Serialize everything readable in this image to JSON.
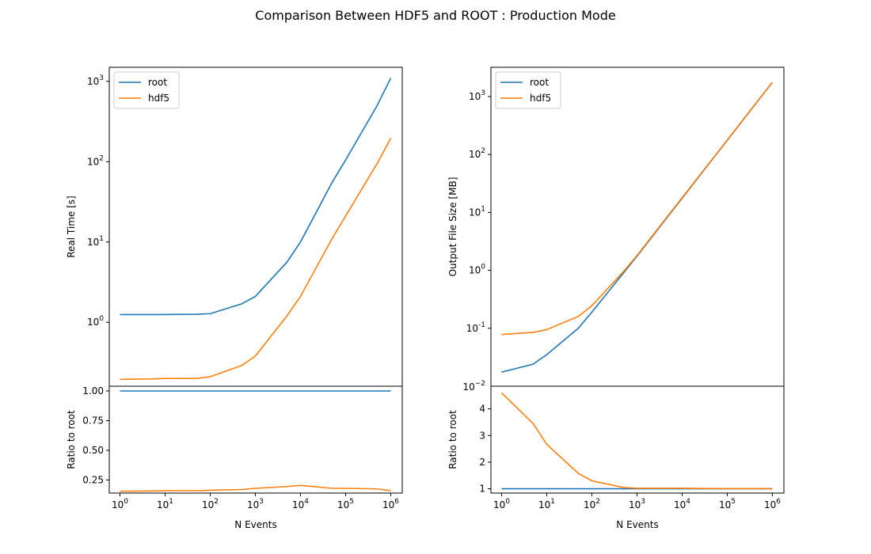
{
  "figure": {
    "title": "Comparison Between HDF5 and ROOT : Production Mode"
  },
  "chart_data": [
    {
      "type": "line",
      "panel": "top-left",
      "xlabel": "",
      "ylabel": "Real Time [s]",
      "xscale": "log",
      "yscale": "log",
      "xlim": [
        0.58,
        1800000.0
      ],
      "ylim": [
        0.16,
        1500
      ],
      "yticks": [
        1,
        10,
        100,
        1000
      ],
      "legend": "upper left",
      "x": [
        1,
        5,
        10,
        50,
        100,
        500,
        1000,
        5000,
        10000,
        50000,
        100000,
        500000,
        1000000
      ],
      "series": [
        {
          "name": "root",
          "color": "#1f77b4",
          "values": [
            1.25,
            1.25,
            1.25,
            1.26,
            1.28,
            1.7,
            2.1,
            5.6,
            10,
            55,
            105,
            500,
            1100
          ]
        },
        {
          "name": "hdf5",
          "color": "#ff7f0e",
          "values": [
            0.195,
            0.197,
            0.2,
            0.2,
            0.21,
            0.29,
            0.38,
            1.2,
            2.1,
            11,
            21,
            95,
            195
          ]
        }
      ]
    },
    {
      "type": "line",
      "panel": "bottom-left",
      "xlabel": "N Events",
      "ylabel": "Ratio to root",
      "xscale": "log",
      "yscale": "linear",
      "xlim": [
        0.58,
        1800000.0
      ],
      "ylim": [
        0.14,
        1.04
      ],
      "yticks": [
        0.25,
        0.5,
        0.75,
        1.0
      ],
      "ytick_labels": [
        "0.25",
        "0.50",
        "0.75",
        "1.00"
      ],
      "xtick_labels": [
        "10^0",
        "10^1",
        "10^2",
        "10^3",
        "10^4",
        "10^5",
        "10^6"
      ],
      "x": [
        1,
        5,
        10,
        50,
        100,
        500,
        1000,
        5000,
        10000,
        50000,
        100000,
        500000,
        1000000
      ],
      "series": [
        {
          "name": "root",
          "color": "#1f77b4",
          "values": [
            1,
            1,
            1,
            1,
            1,
            1,
            1,
            1,
            1,
            1,
            1,
            1,
            1
          ]
        },
        {
          "name": "hdf5",
          "color": "#ff7f0e",
          "values": [
            0.155,
            0.158,
            0.16,
            0.16,
            0.164,
            0.17,
            0.18,
            0.195,
            0.205,
            0.18,
            0.18,
            0.175,
            0.16
          ]
        }
      ]
    },
    {
      "type": "line",
      "panel": "top-right",
      "xlabel": "",
      "ylabel": "Output File Size [MB]",
      "xscale": "log",
      "yscale": "log",
      "xlim": [
        0.58,
        1800000.0
      ],
      "ylim": [
        0.01,
        3200
      ],
      "yticks": [
        0.1,
        1,
        10,
        100,
        1000
      ],
      "legend": "upper left",
      "x": [
        1,
        5,
        10,
        50,
        100,
        500,
        1000,
        5000,
        10000,
        50000,
        100000,
        500000,
        1000000
      ],
      "series": [
        {
          "name": "root",
          "color": "#1f77b4",
          "values": [
            0.0175,
            0.024,
            0.035,
            0.1,
            0.19,
            0.9,
            1.75,
            8.8,
            17.5,
            88,
            175,
            880,
            1750
          ]
        },
        {
          "name": "hdf5",
          "color": "#ff7f0e",
          "values": [
            0.078,
            0.085,
            0.095,
            0.16,
            0.245,
            0.95,
            1.8,
            9,
            17.9,
            89,
            177,
            890,
            1770
          ]
        }
      ]
    },
    {
      "type": "line",
      "panel": "bottom-right",
      "xlabel": "N Events",
      "ylabel": "Ratio to root",
      "xscale": "log",
      "yscale": "linear",
      "xlim": [
        0.58,
        1800000.0
      ],
      "ylim": [
        0.84,
        4.85
      ],
      "yticks": [
        1,
        2,
        3,
        4
      ],
      "ytick_labels": [
        "1",
        "2",
        "3",
        "4"
      ],
      "xtick_labels": [
        "10^0",
        "10^1",
        "10^2",
        "10^3",
        "10^4",
        "10^5",
        "10^6"
      ],
      "x": [
        1,
        5,
        10,
        50,
        100,
        500,
        1000,
        5000,
        10000,
        50000,
        100000,
        500000,
        1000000
      ],
      "series": [
        {
          "name": "root",
          "color": "#1f77b4",
          "values": [
            1,
            1,
            1,
            1,
            1,
            1,
            1,
            1,
            1,
            1,
            1,
            1,
            1
          ]
        },
        {
          "name": "hdf5",
          "color": "#ff7f0e",
          "values": [
            4.6,
            3.45,
            2.67,
            1.58,
            1.3,
            1.05,
            1.02,
            1.02,
            1.02,
            1.01,
            1.01,
            1.01,
            1.01
          ]
        }
      ]
    }
  ]
}
